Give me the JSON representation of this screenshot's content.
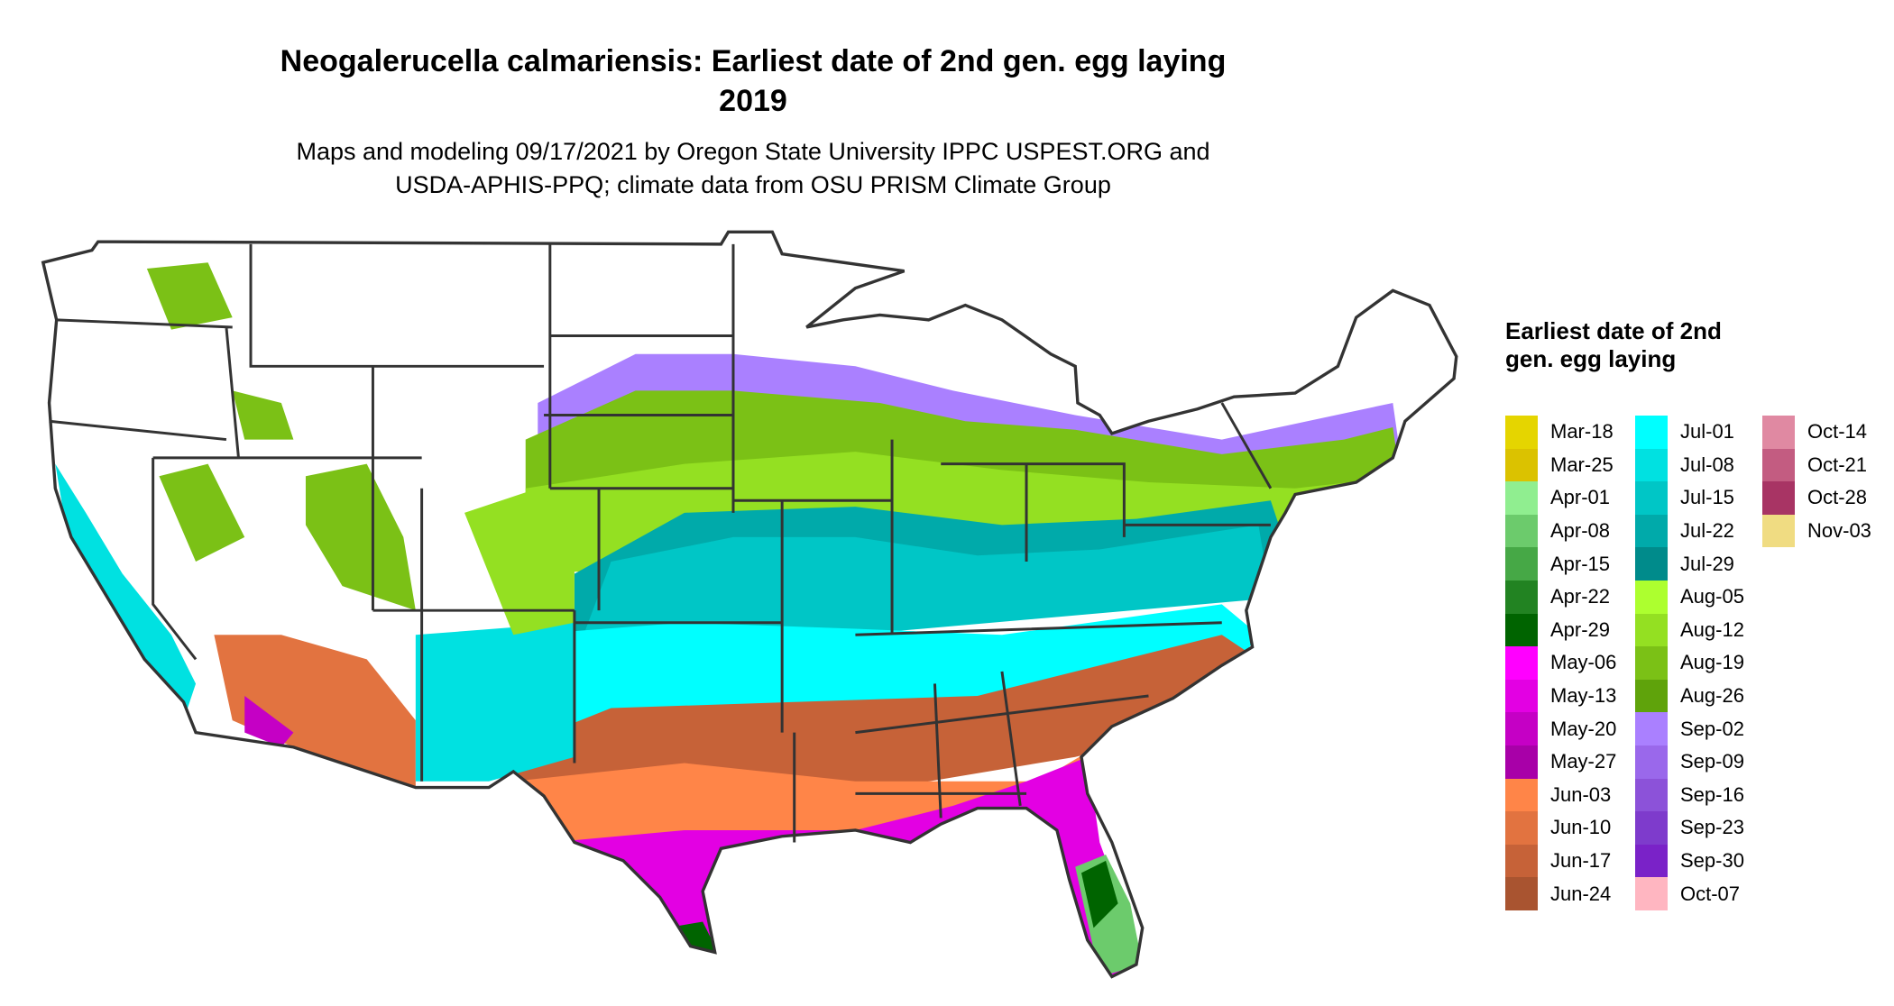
{
  "title": {
    "line1": "Neogalerucella calmariensis: Earliest date of 2nd gen. egg laying",
    "line2": "2019"
  },
  "subtitle": {
    "line1": "Maps and modeling 09/17/2021 by Oregon State University IPPC USPEST.ORG and",
    "line2": "USDA-APHIS-PPQ; climate data from OSU PRISM Climate Group"
  },
  "legend": {
    "title": "Earliest date of 2nd gen. egg laying",
    "columns": [
      [
        {
          "label": "Mar-18",
          "color": "#E5D500"
        },
        {
          "label": "Mar-25",
          "color": "#DBC200"
        },
        {
          "label": "Apr-01",
          "color": "#90EE90"
        },
        {
          "label": "Apr-08",
          "color": "#6CCB6C"
        },
        {
          "label": "Apr-15",
          "color": "#46A846"
        },
        {
          "label": "Apr-22",
          "color": "#228322"
        },
        {
          "label": "Apr-29",
          "color": "#006400"
        },
        {
          "label": "May-06",
          "color": "#FF00FF"
        },
        {
          "label": "May-13",
          "color": "#E300E3"
        },
        {
          "label": "May-20",
          "color": "#C500C5"
        },
        {
          "label": "May-27",
          "color": "#A800A8"
        },
        {
          "label": "Jun-03",
          "color": "#FF8548"
        },
        {
          "label": "Jun-10",
          "color": "#E27340"
        },
        {
          "label": "Jun-17",
          "color": "#C66238"
        },
        {
          "label": "Jun-24",
          "color": "#A95430"
        }
      ],
      [
        {
          "label": "Jul-01",
          "color": "#00FFFF"
        },
        {
          "label": "Jul-08",
          "color": "#00E1E1"
        },
        {
          "label": "Jul-15",
          "color": "#00C6C6"
        },
        {
          "label": "Jul-22",
          "color": "#00AAAA"
        },
        {
          "label": "Jul-29",
          "color": "#008B8B"
        },
        {
          "label": "Aug-05",
          "color": "#ADFF2F"
        },
        {
          "label": "Aug-12",
          "color": "#94E022"
        },
        {
          "label": "Aug-19",
          "color": "#7BC116"
        },
        {
          "label": "Aug-26",
          "color": "#5FA30B"
        },
        {
          "label": "Sep-02",
          "color": "#AA80FF"
        },
        {
          "label": "Sep-09",
          "color": "#9A68EB"
        },
        {
          "label": "Sep-16",
          "color": "#8C52D9"
        },
        {
          "label": "Sep-23",
          "color": "#7E3BCC"
        },
        {
          "label": "Sep-30",
          "color": "#7A22C8"
        },
        {
          "label": "Oct-07",
          "color": "#FFB6C1"
        }
      ],
      [
        {
          "label": "Oct-14",
          "color": "#E089A2"
        },
        {
          "label": "Oct-21",
          "color": "#C35C81"
        },
        {
          "label": "Oct-28",
          "color": "#A83464"
        },
        {
          "label": "Nov-03",
          "color": "#F0DC82"
        }
      ]
    ]
  }
}
